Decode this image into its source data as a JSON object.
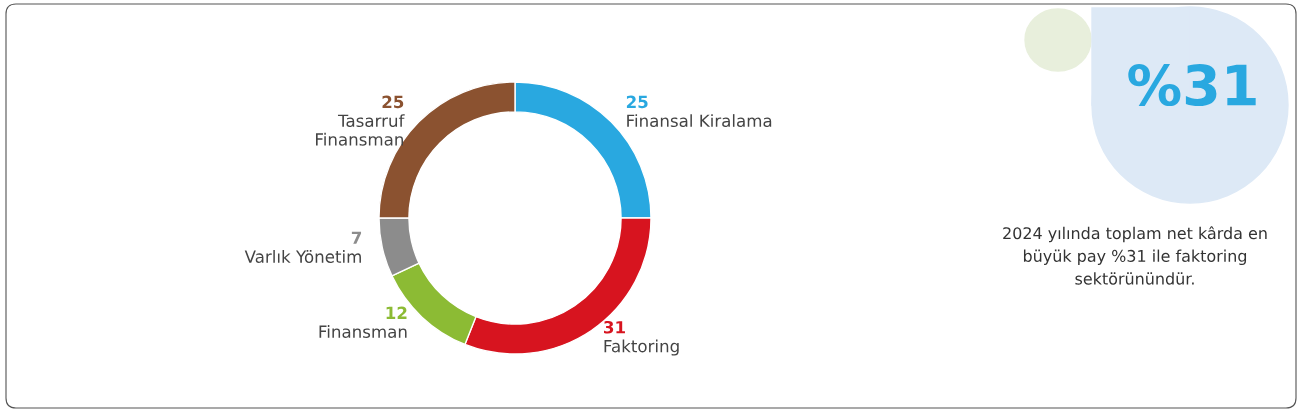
{
  "chart_data": {
    "type": "donut",
    "categories": [
      "Finansal Kiralama",
      "Faktoring",
      "Finansman",
      "Varlık Yönetim",
      "Tasarruf\nFinansman"
    ],
    "values": [
      25,
      31,
      12,
      7,
      25
    ],
    "colors": [
      "#29a8e0",
      "#d7141f",
      "#8cbb34",
      "#8c8c8c",
      "#8b5230"
    ],
    "data_labels": true,
    "legend": false,
    "annotations": [
      "%31",
      "2024 yılında toplam net kârda en\nbüyük pay %31 ile faktoring\nsektörünündür."
    ]
  }
}
